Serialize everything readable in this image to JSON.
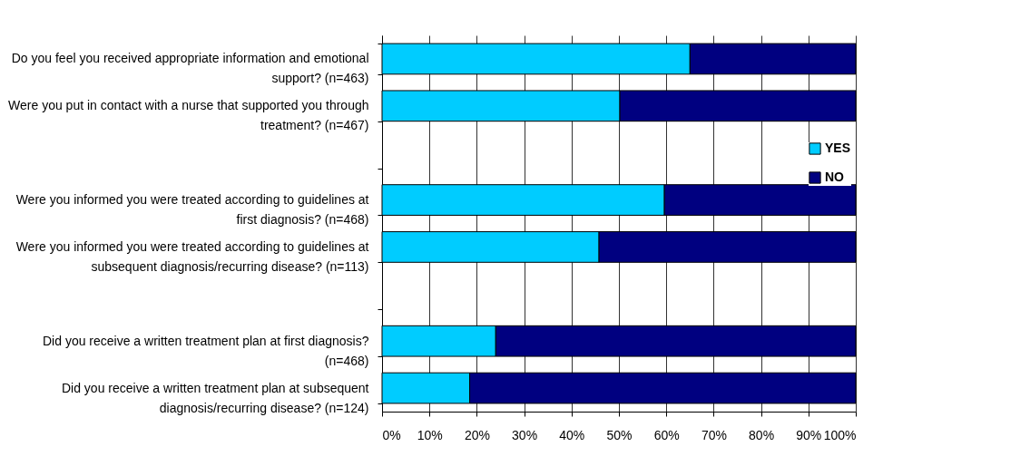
{
  "chart_data": {
    "type": "bar",
    "orientation": "horizontal",
    "stacked": true,
    "categories": [
      "Do you feel you received appropriate information and emotional support? (n=463)",
      "Were you put in contact with a nurse that supported you through treatment? (n=467)",
      null,
      "Were you informed you were treated according to guidelines at first diagnosis? (n=468)",
      "Were you informed you were treated according to guidelines at subsequent diagnosis/recurring disease? (n=113)",
      null,
      "Did you receive a written treatment plan at first diagnosis? (n=468)",
      "Did you receive a written treatment plan at subsequent diagnosis/recurring disease? (n=124)"
    ],
    "series": [
      {
        "name": "YES",
        "color": "#00ccff",
        "values": [
          65,
          50.2,
          null,
          59.6,
          45.8,
          null,
          24,
          18.5
        ]
      },
      {
        "name": "NO",
        "color": "#000080",
        "values": [
          35,
          49.8,
          null,
          40.4,
          54.2,
          null,
          76,
          81.5
        ]
      }
    ],
    "xlim": [
      0,
      100
    ],
    "xticks": [
      {
        "value": 0,
        "label": "0%"
      },
      {
        "value": 10,
        "label": "10%"
      },
      {
        "value": 20,
        "label": "20%"
      },
      {
        "value": 30,
        "label": "30%"
      },
      {
        "value": 40,
        "label": "40%"
      },
      {
        "value": 50,
        "label": "50%"
      },
      {
        "value": 60,
        "label": "60%"
      },
      {
        "value": 70,
        "label": "70%"
      },
      {
        "value": 80,
        "label": "80%"
      },
      {
        "value": 90,
        "label": "90%"
      },
      {
        "value": 100,
        "label": "100%"
      }
    ],
    "grid": "x",
    "legend": "right"
  }
}
